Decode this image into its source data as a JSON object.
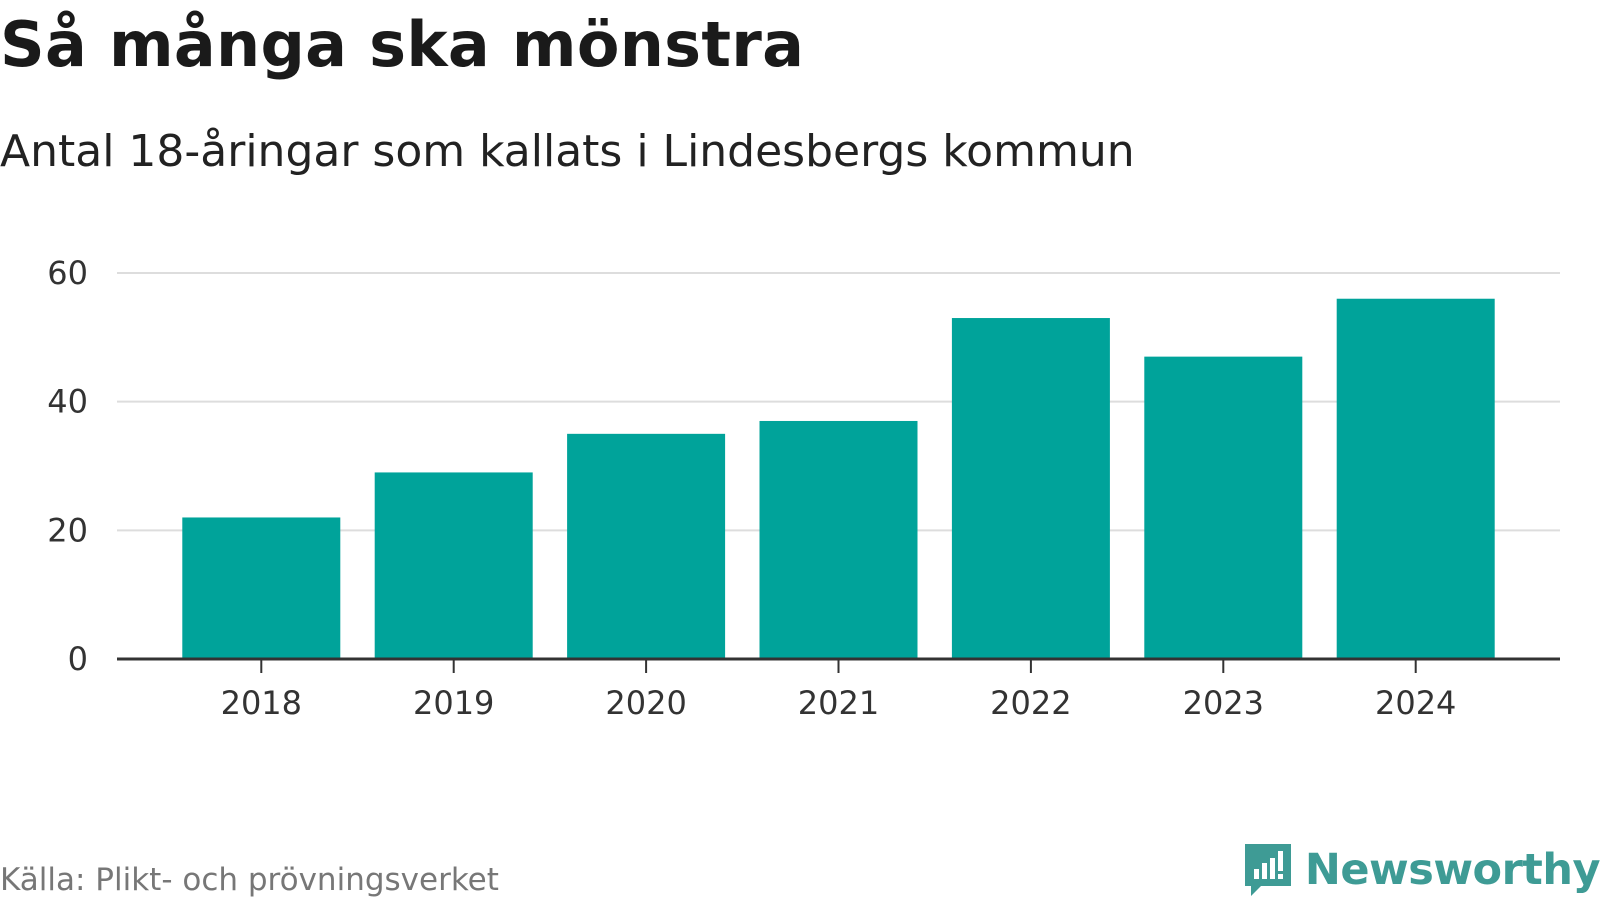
{
  "header": {
    "title": "Så många ska mönstra",
    "subtitle": "Antal 18-åringar som kallats i Lindesbergs kommun"
  },
  "footer": {
    "source": "Källa: Plikt- och prövningsverket",
    "brand": "Newsworthy",
    "brand_icon": "newsworthy-bar-chart-icon"
  },
  "colors": {
    "bar": "#00a39a",
    "grid": "#dddddd",
    "axis": "#333333",
    "brand": "#3e9b95"
  },
  "chart_data": {
    "type": "bar",
    "title": "Så många ska mönstra",
    "subtitle": "Antal 18-åringar som kallats i Lindesbergs kommun",
    "categories": [
      "2018",
      "2019",
      "2020",
      "2021",
      "2022",
      "2023",
      "2024"
    ],
    "values": [
      22,
      29,
      35,
      37,
      53,
      47,
      56
    ],
    "xlabel": "",
    "ylabel": "",
    "ylim": [
      0,
      60
    ],
    "yticks": [
      0,
      20,
      40,
      60
    ],
    "grid": true,
    "legend": "none"
  }
}
